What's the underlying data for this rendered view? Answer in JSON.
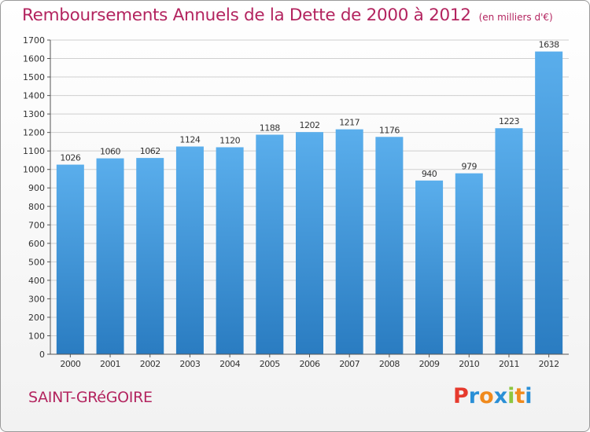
{
  "header": {
    "title": "Remboursements Annuels de la Dette de 2000 à 2012",
    "unit": "(en milliers d'€)"
  },
  "footer": {
    "place": "SAINT-GRéGOIRE",
    "logo_letters": [
      "P",
      "r",
      "o",
      "x",
      "i",
      "t",
      "i"
    ],
    "logo_colors": [
      "#e63a2d",
      "#2a8fd6",
      "#f08a1d",
      "#2a8fd6",
      "#8dc63f",
      "#f08a1d",
      "#2a8fd6"
    ]
  },
  "colors": {
    "bar_light": "#5aaeec",
    "bar_dark": "#2a7cc1",
    "grid": "#cfcfcf",
    "title": "#b3245f"
  },
  "chart_data": {
    "type": "bar",
    "title": "Remboursements Annuels de la Dette de 2000 à 2012",
    "xlabel": "",
    "ylabel": "",
    "categories": [
      "2000",
      "2001",
      "2002",
      "2003",
      "2004",
      "2005",
      "2006",
      "2007",
      "2008",
      "2009",
      "2010",
      "2011",
      "2012"
    ],
    "values": [
      1026,
      1060,
      1062,
      1124,
      1120,
      1188,
      1202,
      1217,
      1176,
      940,
      979,
      1223,
      1638
    ],
    "ylim": [
      0,
      1700
    ],
    "ytick_step": 100,
    "grid": true
  }
}
